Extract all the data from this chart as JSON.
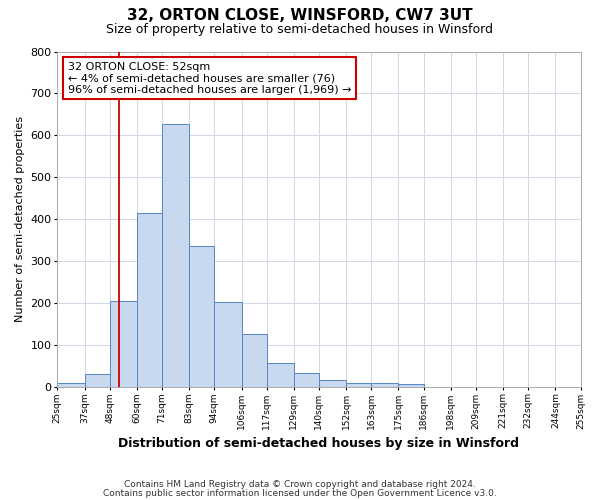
{
  "title": "32, ORTON CLOSE, WINSFORD, CW7 3UT",
  "subtitle": "Size of property relative to semi-detached houses in Winsford",
  "xlabel": "Distribution of semi-detached houses by size in Winsford",
  "ylabel": "Number of semi-detached properties",
  "bin_labels": [
    "25sqm",
    "37sqm",
    "48sqm",
    "60sqm",
    "71sqm",
    "83sqm",
    "94sqm",
    "106sqm",
    "117sqm",
    "129sqm",
    "140sqm",
    "152sqm",
    "163sqm",
    "175sqm",
    "186sqm",
    "198sqm",
    "209sqm",
    "221sqm",
    "232sqm",
    "244sqm",
    "255sqm"
  ],
  "bin_edges": [
    25,
    37,
    48,
    60,
    71,
    83,
    94,
    106,
    117,
    129,
    140,
    152,
    163,
    175,
    186,
    198,
    209,
    221,
    232,
    244,
    255
  ],
  "bar_heights": [
    10,
    30,
    205,
    415,
    628,
    335,
    203,
    125,
    57,
    32,
    15,
    10,
    8,
    6,
    0,
    0,
    0,
    0,
    0,
    0
  ],
  "bar_color": "#c8d8ee",
  "bar_edge_color": "#5585c5",
  "property_line_x": 52,
  "property_line_color": "#cc0000",
  "annotation_line1": "32 ORTON CLOSE: 52sqm",
  "annotation_line2": "← 4% of semi-detached houses are smaller (76)",
  "annotation_line3": "96% of semi-detached houses are larger (1,969) →",
  "annotation_box_color": "#cc0000",
  "ylim": [
    0,
    800
  ],
  "yticks": [
    0,
    100,
    200,
    300,
    400,
    500,
    600,
    700,
    800
  ],
  "footer1": "Contains HM Land Registry data © Crown copyright and database right 2024.",
  "footer2": "Contains public sector information licensed under the Open Government Licence v3.0.",
  "background_color": "#ffffff",
  "plot_background": "#ffffff"
}
